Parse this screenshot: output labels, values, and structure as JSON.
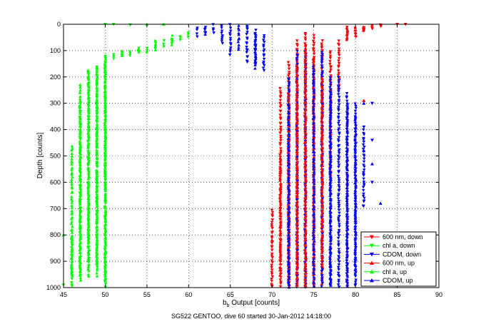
{
  "chart_data": {
    "type": "scatter",
    "title": "",
    "xlabel": "b_b Output [counts]",
    "xlabel_main": "b",
    "xlabel_sub": "b",
    "xlabel_rest": " Output [counts]",
    "ylabel": "Depth [counts]",
    "caption": "SG522 GENTOO, dive 60 started 30-Jan-2012 14:18:00",
    "xlim": [
      45,
      90
    ],
    "ylim": [
      0,
      1000
    ],
    "y_reversed": true,
    "grid": true,
    "legend_position": "bottom-right",
    "xticks": [
      "45",
      "50",
      "55",
      "60",
      "65",
      "70",
      "75",
      "80",
      "85",
      "90"
    ],
    "yticks": [
      "0",
      "100",
      "200",
      "300",
      "400",
      "500",
      "600",
      "700",
      "800",
      "900",
      "1000"
    ],
    "colors": {
      "red": "#ff0000",
      "green": "#00ff00",
      "blue": "#0000ff"
    },
    "series": [
      {
        "name": "600 nm, down",
        "color": "#ff0000",
        "marker": "triangle-down",
        "columns": [
          {
            "x": 70,
            "y0": 700,
            "y1": 1000
          },
          {
            "x": 71,
            "y0": 240,
            "y1": 1000
          },
          {
            "x": 72,
            "y0": 140,
            "y1": 1000
          },
          {
            "x": 73,
            "y0": 60,
            "y1": 1000
          },
          {
            "x": 74,
            "y0": 30,
            "y1": 1000
          },
          {
            "x": 75,
            "y0": 40,
            "y1": 1000
          },
          {
            "x": 76,
            "y0": 60,
            "y1": 1000
          },
          {
            "x": 77,
            "y0": 100,
            "y1": 600
          },
          {
            "x": 78,
            "y0": 60,
            "y1": 260
          },
          {
            "x": 79,
            "y0": 10,
            "y1": 60
          },
          {
            "x": 80,
            "y0": 10,
            "y1": 50
          },
          {
            "x": 81,
            "y0": 5,
            "y1": 30
          },
          {
            "x": 82,
            "y0": 2,
            "y1": 20
          },
          {
            "x": 83,
            "y0": 0,
            "y1": 10
          }
        ],
        "points": [
          [
            85,
            0
          ],
          [
            86,
            0
          ],
          [
            81,
            20
          ],
          [
            70,
            995
          ]
        ]
      },
      {
        "name": "chl a, down",
        "color": "#00ff00",
        "marker": "triangle-down",
        "columns": [
          {
            "x": 46,
            "y0": 800,
            "y1": 1000
          },
          {
            "x": 47,
            "y0": 300,
            "y1": 960
          },
          {
            "x": 48,
            "y0": 180,
            "y1": 920
          },
          {
            "x": 49,
            "y0": 160,
            "y1": 920
          },
          {
            "x": 50,
            "y0": 120,
            "y1": 1000
          },
          {
            "x": 51,
            "y0": 110,
            "y1": 140
          },
          {
            "x": 52,
            "y0": 100,
            "y1": 130
          },
          {
            "x": 53,
            "y0": 100,
            "y1": 120
          },
          {
            "x": 54,
            "y0": 90,
            "y1": 115
          },
          {
            "x": 55,
            "y0": 85,
            "y1": 110
          },
          {
            "x": 56,
            "y0": 70,
            "y1": 100
          },
          {
            "x": 57,
            "y0": 60,
            "y1": 90
          },
          {
            "x": 58,
            "y0": 50,
            "y1": 80
          },
          {
            "x": 59,
            "y0": 40,
            "y1": 65
          },
          {
            "x": 60,
            "y0": 30,
            "y1": 50
          }
        ],
        "points": [
          [
            50,
            0
          ],
          [
            51,
            0
          ],
          [
            53,
            2
          ],
          [
            45,
            990
          ]
        ]
      },
      {
        "name": "CDOM, down",
        "color": "#0000ff",
        "marker": "triangle-down",
        "columns": [
          {
            "x": 61,
            "y0": 10,
            "y1": 50
          },
          {
            "x": 62,
            "y0": 5,
            "y1": 40
          },
          {
            "x": 63,
            "y0": 0,
            "y1": 40
          },
          {
            "x": 64,
            "y0": 0,
            "y1": 80
          },
          {
            "x": 65,
            "y0": 0,
            "y1": 120
          },
          {
            "x": 67,
            "y0": 0,
            "y1": 150
          },
          {
            "x": 68,
            "y0": 20,
            "y1": 160
          },
          {
            "x": 69,
            "y0": 40,
            "y1": 180
          },
          {
            "x": 72,
            "y0": 200,
            "y1": 1000
          },
          {
            "x": 73,
            "y0": 100,
            "y1": 1000
          },
          {
            "x": 74,
            "y0": 100,
            "y1": 1000
          },
          {
            "x": 76,
            "y0": 100,
            "y1": 1000
          },
          {
            "x": 77,
            "y0": 200,
            "y1": 1000
          },
          {
            "x": 78,
            "y0": 200,
            "y1": 1000
          },
          {
            "x": 79,
            "y0": 260,
            "y1": 1000
          },
          {
            "x": 80,
            "y0": 300,
            "y1": 1000
          },
          {
            "x": 81,
            "y0": 400,
            "y1": 700
          }
        ],
        "points": [
          [
            82,
            300
          ],
          [
            81,
            390
          ],
          [
            82,
            440
          ],
          [
            82,
            600
          ]
        ]
      },
      {
        "name": "600 nm, up",
        "color": "#ff0000",
        "marker": "triangle-up",
        "columns": [
          {
            "x": 71,
            "y0": 500,
            "y1": 960
          },
          {
            "x": 72,
            "y0": 260,
            "y1": 1000
          },
          {
            "x": 73,
            "y0": 150,
            "y1": 1000
          },
          {
            "x": 74,
            "y0": 80,
            "y1": 1000
          },
          {
            "x": 75,
            "y0": 120,
            "y1": 950
          },
          {
            "x": 76,
            "y0": 200,
            "y1": 920
          },
          {
            "x": 79,
            "y0": 10,
            "y1": 60
          },
          {
            "x": 80,
            "y0": 10,
            "y1": 45
          },
          {
            "x": 81,
            "y0": 5,
            "y1": 30
          }
        ],
        "points": [
          [
            81,
            290
          ],
          [
            70,
            820
          ],
          [
            71,
            560
          ]
        ]
      },
      {
        "name": "chl a, up",
        "color": "#00ff00",
        "marker": "triangle-up",
        "columns": [
          {
            "x": 46,
            "y0": 460,
            "y1": 960
          },
          {
            "x": 47,
            "y0": 240,
            "y1": 980
          },
          {
            "x": 48,
            "y0": 170,
            "y1": 960
          },
          {
            "x": 49,
            "y0": 160,
            "y1": 960
          },
          {
            "x": 50,
            "y0": 120,
            "y1": 980
          },
          {
            "x": 52,
            "y0": 100,
            "y1": 120
          },
          {
            "x": 54,
            "y0": 90,
            "y1": 110
          },
          {
            "x": 56,
            "y0": 60,
            "y1": 100
          },
          {
            "x": 58,
            "y0": 40,
            "y1": 80
          }
        ],
        "points": [
          [
            45,
            800
          ],
          [
            47,
            230
          ],
          [
            55,
            0
          ],
          [
            57,
            0
          ]
        ]
      },
      {
        "name": "CDOM, up",
        "color": "#0000ff",
        "marker": "triangle-up",
        "columns": [
          {
            "x": 62,
            "y0": 10,
            "y1": 40
          },
          {
            "x": 66,
            "y0": 0,
            "y1": 100
          },
          {
            "x": 68,
            "y0": 30,
            "y1": 170
          },
          {
            "x": 72,
            "y0": 300,
            "y1": 1000
          },
          {
            "x": 75,
            "y0": 150,
            "y1": 1000
          },
          {
            "x": 77,
            "y0": 250,
            "y1": 1000
          },
          {
            "x": 79,
            "y0": 300,
            "y1": 1000
          },
          {
            "x": 80,
            "y0": 350,
            "y1": 950
          }
        ],
        "points": [
          [
            81,
            480
          ],
          [
            82,
            530
          ],
          [
            83,
            680
          ],
          [
            81,
            300
          ]
        ]
      }
    ]
  }
}
